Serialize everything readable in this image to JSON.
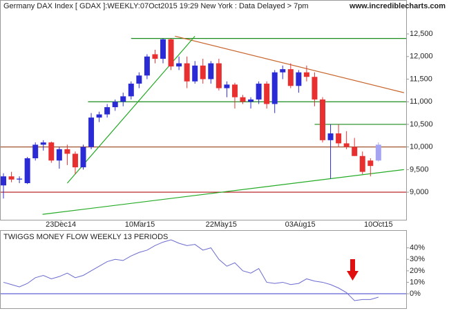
{
  "chart_data": [
    {
      "type": "candlestick",
      "title": "Germany DAX Index [ GDAX ]:WEEKLY:07Oct2015 19:29 New York : Data Delayed > 7pm",
      "source": "www.incrediblecharts.com",
      "open": [
        9150,
        9350,
        9280,
        9200,
        9750,
        10050,
        10100,
        9700,
        9950,
        9850,
        9550,
        10000,
        10650,
        10720,
        10880,
        11000,
        11120,
        11400,
        11580,
        12050,
        11950,
        12380,
        11780,
        11850,
        11450,
        11800,
        11500,
        11850,
        11300,
        11380,
        11100,
        11000,
        11050,
        11400,
        10950,
        11650,
        11720,
        11350,
        11650,
        11550,
        11050,
        10150,
        10300,
        10080,
        10000,
        9800,
        9700,
        9700
      ],
      "high": [
        9420,
        9450,
        9350,
        9780,
        10100,
        10150,
        10120,
        10000,
        10050,
        9900,
        10050,
        10750,
        10780,
        10950,
        11050,
        11200,
        11450,
        11650,
        12050,
        12150,
        12400,
        12400,
        12000,
        12000,
        11900,
        11950,
        11900,
        11950,
        11450,
        11420,
        11150,
        11100,
        11450,
        11450,
        11700,
        11800,
        11850,
        11700,
        11800,
        11650,
        11100,
        10500,
        10500,
        10350,
        10200,
        9900,
        9750,
        10100
      ],
      "low": [
        8860,
        9220,
        9200,
        9180,
        9700,
        9920,
        9650,
        9520,
        9600,
        9400,
        9500,
        9950,
        10550,
        10650,
        10800,
        10900,
        11050,
        11300,
        11500,
        11850,
        11850,
        11700,
        11700,
        11300,
        11400,
        11400,
        11400,
        11250,
        11100,
        10850,
        10950,
        10850,
        10950,
        10850,
        10750,
        11500,
        11300,
        11200,
        11450,
        10900,
        10100,
        9300,
        10000,
        9950,
        9800,
        9400,
        9350,
        9680
      ],
      "close": [
        9350,
        9280,
        9300,
        9750,
        10050,
        10100,
        9700,
        9950,
        9850,
        9550,
        10000,
        10650,
        10720,
        10880,
        11000,
        11120,
        11400,
        11580,
        12000,
        11950,
        12380,
        11780,
        11850,
        11450,
        11800,
        11500,
        11850,
        11300,
        11380,
        11100,
        11000,
        11050,
        11400,
        10950,
        11650,
        11720,
        11350,
        11650,
        11550,
        11050,
        10150,
        10300,
        10080,
        10000,
        9800,
        9450,
        9580,
        10050
      ],
      "up_color": "#2b2bd6",
      "down_color": "#e83030",
      "current_color": "#a4a4f2",
      "ylim": [
        8390,
        12715
      ],
      "yticks": [
        {
          "value": 9000,
          "label": "9,000"
        },
        {
          "value": 9500,
          "label": "9,500"
        },
        {
          "value": 10000,
          "label": "10,000"
        },
        {
          "value": 10500,
          "label": "10,500"
        },
        {
          "value": 11000,
          "label": "11,000"
        },
        {
          "value": 11500,
          "label": "11,500"
        },
        {
          "value": 12000,
          "label": "12,000"
        },
        {
          "value": 12500,
          "label": "12,500"
        }
      ],
      "xticks": [
        {
          "value": 7.2,
          "label": "23Dec14"
        },
        {
          "value": 17.1,
          "label": "10Mar15"
        },
        {
          "value": 27.3,
          "label": "22May15"
        },
        {
          "value": 37.2,
          "label": "03Aug15"
        },
        {
          "value": 47,
          "label": "10Oct15"
        }
      ],
      "hlines": [
        {
          "value": 12400,
          "start": 16,
          "color": "#1a8a1a"
        },
        {
          "value": 11000,
          "start": 10.6,
          "color": "#1a8a1a"
        },
        {
          "value": 10500,
          "start": 39,
          "color": "#1a8a1a"
        },
        {
          "value": 10000,
          "color": "#a0522d"
        },
        {
          "value": 9000,
          "color": "#b01010"
        }
      ],
      "trendlines": [
        {
          "x": [
            21.5,
            50.2
          ],
          "y": [
            12450,
            11200
          ],
          "color": "#c8642a"
        },
        {
          "x": [
            8,
            24
          ],
          "y": [
            9200,
            12450
          ],
          "color": "#22aa22"
        },
        {
          "x": [
            4.9,
            50.2
          ],
          "y": [
            8510,
            9500
          ],
          "color": "#22aa22"
        }
      ]
    },
    {
      "type": "line",
      "title": "TWIGGS MONEY FLOW WEEKLY 13 PERIODS",
      "values": [
        10,
        8,
        6,
        9,
        14,
        16,
        13,
        15,
        18,
        14,
        16,
        20,
        24,
        28,
        30,
        29,
        33,
        36,
        38,
        42,
        45,
        47,
        44,
        42,
        43,
        38,
        40,
        30,
        24,
        27,
        20,
        18,
        22,
        10,
        9,
        10,
        8,
        9,
        13,
        11,
        10,
        8,
        5,
        1,
        -6,
        -5,
        -5,
        -3
      ],
      "color": "#6a6ad0",
      "zero_color": "#3a3ac8",
      "ylim": [
        -9,
        44
      ],
      "yticks": [
        {
          "value": 0,
          "label": "0%"
        },
        {
          "value": 10,
          "label": "10%"
        },
        {
          "value": 20,
          "label": "20%"
        },
        {
          "value": 30,
          "label": "30%"
        },
        {
          "value": 40,
          "label": "40%"
        }
      ]
    }
  ]
}
